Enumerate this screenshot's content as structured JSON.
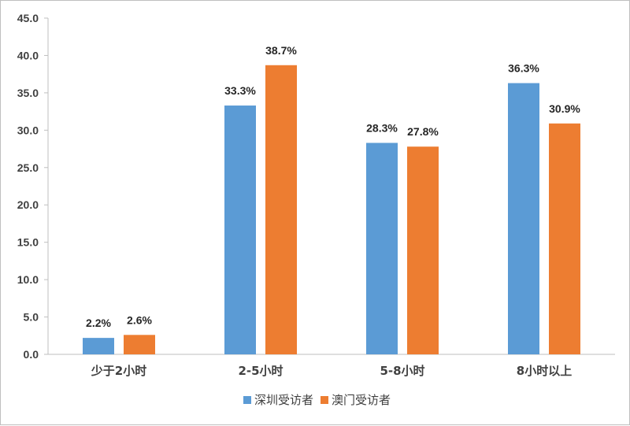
{
  "chart_data": {
    "type": "bar",
    "categories": [
      "少于2小时",
      "2-5小时",
      "5-8小时",
      "8小时以上"
    ],
    "series": [
      {
        "name": "深圳受访者",
        "color": "#5b9bd5",
        "values": [
          2.2,
          33.3,
          28.3,
          36.3
        ],
        "labels": [
          "2.2%",
          "33.3%",
          "28.3%",
          "36.3%"
        ]
      },
      {
        "name": "澳门受访者",
        "color": "#ed7d31",
        "values": [
          2.6,
          38.7,
          27.8,
          30.9
        ],
        "labels": [
          "2.6%",
          "38.7%",
          "27.8%",
          "30.9%"
        ]
      }
    ],
    "yticks": [
      "0.0",
      "5.0",
      "10.0",
      "15.0",
      "20.0",
      "25.0",
      "30.0",
      "35.0",
      "40.0",
      "45.0"
    ],
    "ylim": [
      0,
      45
    ],
    "grid": false,
    "legend_position": "bottom-center",
    "title": "",
    "xlabel": "",
    "ylabel": ""
  }
}
